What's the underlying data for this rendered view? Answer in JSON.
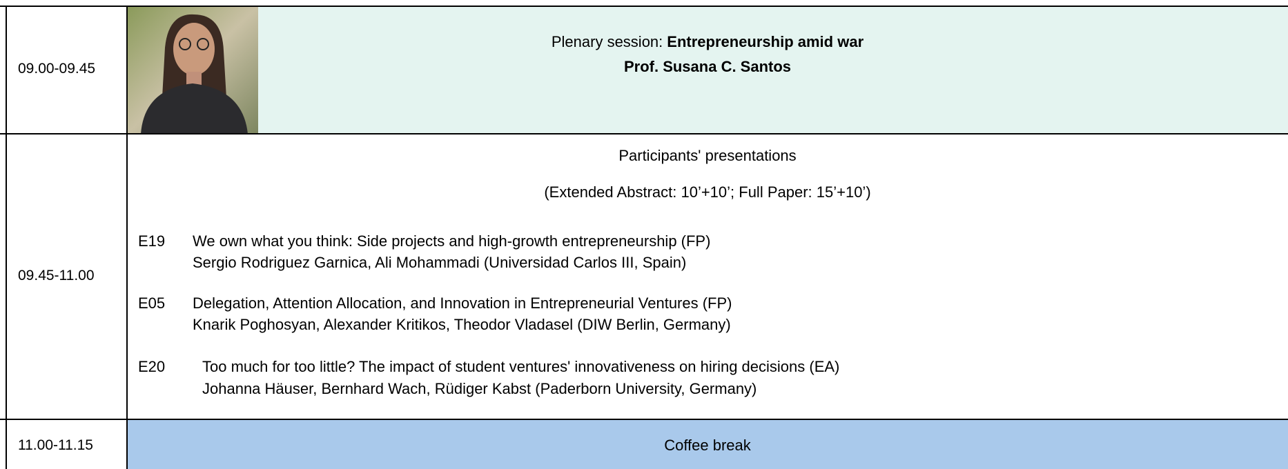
{
  "rows": [
    {
      "time": "09.00-09.45",
      "session_prefix": "Plenary session:",
      "session_title": "Entrepreneurship amid war",
      "speaker": "Prof. Susana C. Santos"
    },
    {
      "time": "09.45-11.00",
      "heading": "Participants' presentations",
      "note": "(Extended Abstract: 10’+10’; Full Paper: 15’+10’)",
      "papers": [
        {
          "code": "E19",
          "title": "We own what you think: Side projects and high-growth entrepreneurship (FP)",
          "authors": "Sergio Rodriguez Garnica, Ali Mohammadi (Universidad Carlos III, Spain)"
        },
        {
          "code": "E05",
          "title": "Delegation, Attention Allocation, and Innovation in Entrepreneurial Ventures (FP)",
          "authors": "Knarik Poghosyan, Alexander Kritikos, Theodor Vladasel (DIW Berlin, Germany)"
        },
        {
          "code": "E20",
          "title": "Too much for too little? The impact of student ventures' innovativeness on hiring decisions (EA)",
          "authors": "Johanna Häuser, Bernhard Wach, Rüdiger Kabst (Paderborn University, Germany)"
        }
      ]
    },
    {
      "time": "11.00-11.15",
      "label": "Coffee break"
    }
  ]
}
